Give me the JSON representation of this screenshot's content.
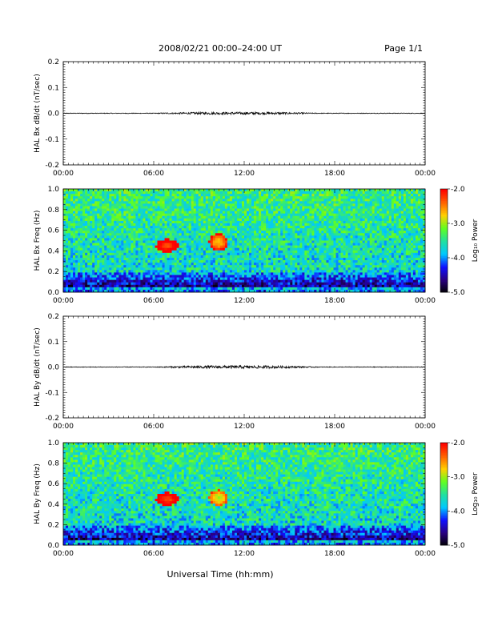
{
  "header": {
    "title": "2008/02/21   00:00–24:00 UT",
    "page": "Page 1/1"
  },
  "footer": {
    "xlabel": "Universal Time (hh:mm)"
  },
  "colors": {
    "trace": "#000000",
    "colorbar": [
      "#000000",
      "#2a0080",
      "#1010ff",
      "#00c8ff",
      "#20e0a0",
      "#60ff20",
      "#ffd000",
      "#ff6000",
      "#ff0000"
    ]
  },
  "chart_data": [
    {
      "type": "line",
      "panel": "Bx dB/dt",
      "ylabel": "HAL Bx dB/dt (nT/sec)",
      "ylim": [
        -0.2,
        0.2
      ],
      "yticks": [
        "0.2",
        "0.1",
        "0.0",
        "-0.1",
        "-0.2"
      ],
      "xlim": [
        0,
        24
      ],
      "xticks": [
        "00:00",
        "06:00",
        "12:00",
        "18:00",
        "00:00"
      ],
      "series": [
        {
          "description": "dB/dt trace",
          "baseline": 0.0,
          "peak_amplitude": 0.005,
          "active_window_hours": [
            6,
            17
          ]
        }
      ]
    },
    {
      "type": "heatmap",
      "panel": "Bx spectrogram",
      "ylabel": "HAL Bx Freq (Hz)",
      "ylim": [
        0,
        1.0
      ],
      "yticks": [
        "1.0",
        "0.8",
        "0.6",
        "0.4",
        "0.2",
        "0.0"
      ],
      "xlim": [
        0,
        24
      ],
      "xticks": [
        "00:00",
        "06:00",
        "12:00",
        "18:00",
        "00:00"
      ],
      "colorbar": {
        "label": "Log₁₀ Power",
        "range": [
          -5.0,
          -2.0
        ],
        "ticks": [
          "-2.0",
          "-3.0",
          "-4.0",
          "-5.0"
        ]
      },
      "features": [
        {
          "time_hours": [
            6.3,
            7.5
          ],
          "freq_hz": [
            0.4,
            0.5
          ],
          "log_power": -2.3
        },
        {
          "time_hours": [
            9.8,
            10.8
          ],
          "freq_hz": [
            0.42,
            0.55
          ],
          "log_power": -2.7
        }
      ]
    },
    {
      "type": "line",
      "panel": "By dB/dt",
      "ylabel": "HAL By dB/dt (nT/sec)",
      "ylim": [
        -0.2,
        0.2
      ],
      "yticks": [
        "0.2",
        "0.1",
        "0.0",
        "-0.1",
        "-0.2"
      ],
      "xlim": [
        0,
        24
      ],
      "xticks": [
        "00:00",
        "06:00",
        "12:00",
        "18:00",
        "00:00"
      ],
      "series": [
        {
          "description": "dB/dt trace",
          "baseline": 0.0,
          "peak_amplitude": 0.006,
          "active_window_hours": [
            6,
            17
          ]
        }
      ]
    },
    {
      "type": "heatmap",
      "panel": "By spectrogram",
      "ylabel": "HAL By Freq (Hz)",
      "ylim": [
        0,
        1.0
      ],
      "yticks": [
        "1.0",
        "0.8",
        "0.6",
        "0.4",
        "0.2",
        "0.0"
      ],
      "xlim": [
        0,
        24
      ],
      "xticks": [
        "00:00",
        "06:00",
        "12:00",
        "18:00",
        "00:00"
      ],
      "colorbar": {
        "label": "Log₁₀ Power",
        "range": [
          -5.0,
          -2.0
        ],
        "ticks": [
          "-2.0",
          "-3.0",
          "-4.0",
          "-5.0"
        ]
      },
      "features": [
        {
          "time_hours": [
            6.3,
            7.5
          ],
          "freq_hz": [
            0.4,
            0.5
          ],
          "log_power": -2.3
        },
        {
          "time_hours": [
            9.8,
            10.8
          ],
          "freq_hz": [
            0.4,
            0.52
          ],
          "log_power": -3.0
        }
      ]
    }
  ]
}
